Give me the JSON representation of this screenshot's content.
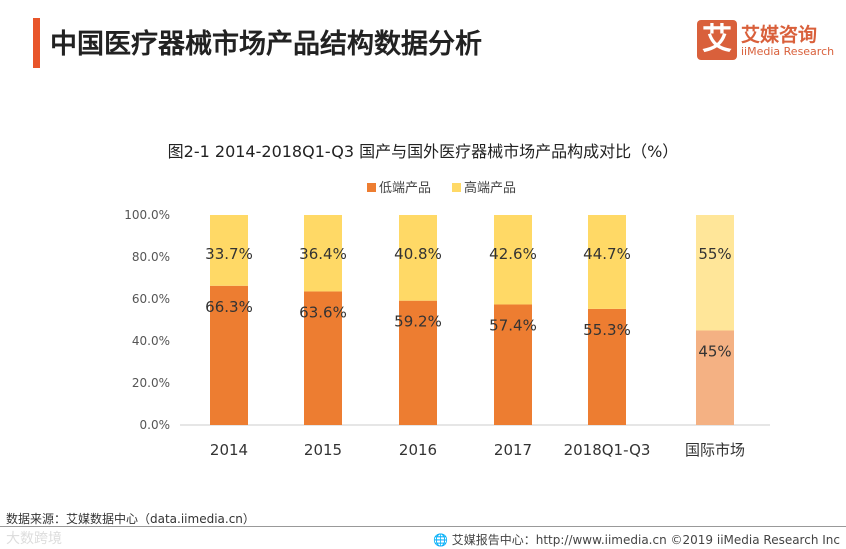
{
  "header": {
    "title": "中国医疗器械市场产品结构数据分析",
    "logo_cn": "艾媒咨询",
    "logo_en": "iiMedia Research",
    "logo_mark": "艾"
  },
  "chart_data": {
    "type": "bar",
    "stacked": true,
    "title": "图2-1 2014-2018Q1-Q3 国产与国外医疗器械市场产品构成对比（%）",
    "categories": [
      "2014",
      "2015",
      "2016",
      "2017",
      "2018Q1-Q3",
      "国际市场"
    ],
    "series": [
      {
        "name": "低端产品",
        "values": [
          66.3,
          63.6,
          59.2,
          57.4,
          55.3,
          45
        ],
        "labels": [
          "66.3%",
          "63.6%",
          "59.2%",
          "57.4%",
          "55.3%",
          "45%"
        ],
        "color": "#ED7D31",
        "highlight_color": "#F4B183"
      },
      {
        "name": "高端产品",
        "values": [
          33.7,
          36.4,
          40.8,
          42.6,
          44.7,
          55
        ],
        "labels": [
          "33.7%",
          "36.4%",
          "40.8%",
          "42.6%",
          "44.7%",
          "55%"
        ],
        "color": "#FFD966",
        "highlight_color": "#FFE699"
      }
    ],
    "yticks": [
      "0.0%",
      "20.0%",
      "40.0%",
      "60.0%",
      "80.0%",
      "100.0%"
    ],
    "ylim": [
      0,
      100
    ],
    "legend": "top"
  },
  "footer": {
    "source": "数据来源：艾媒数据中心（data.iimedia.cn）",
    "watermark": "大数跨境",
    "copyright": "艾媒报告中心：http://www.iimedia.cn ©2019  iiMedia Research  Inc"
  }
}
